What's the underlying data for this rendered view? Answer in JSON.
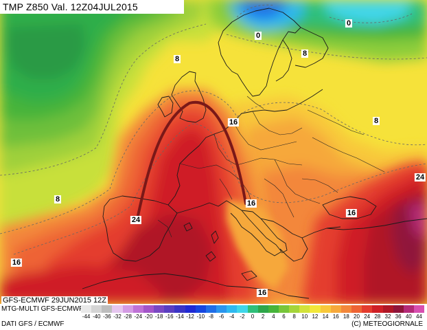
{
  "header": {
    "title": "TMP  Z850  Val.  12Z04JUL2015"
  },
  "model": {
    "run_label": "GFS-ECMWF  29JUN2015  12Z",
    "scale_title": "MTG-MULTI  GFS-ECMWF"
  },
  "footer": {
    "source": "DATI GFS / ECMWF",
    "credit": "(C) METEOGIORNALE"
  },
  "color_scale": {
    "labels": [
      "-44",
      "-40",
      "-36",
      "-32",
      "-28",
      "-24",
      "-20",
      "-18",
      "-16",
      "-14",
      "-12",
      "-10",
      "-8",
      "-6",
      "-4",
      "-2",
      "0",
      "2",
      "4",
      "6",
      "8",
      "10",
      "12",
      "14",
      "16",
      "18",
      "20",
      "24",
      "28",
      "32",
      "36",
      "40",
      "44"
    ],
    "colors": [
      "#e9e9e9",
      "#d4d4d4",
      "#bdbdbd",
      "#e6c6ef",
      "#d49be4",
      "#bf72d6",
      "#a355c9",
      "#7a48c3",
      "#5a3ec1",
      "#3a34c6",
      "#1f2ad4",
      "#1646e0",
      "#1f6ee8",
      "#2a96ee",
      "#2fb9f0",
      "#3fd6ea",
      "#2fbf7a",
      "#2ea64a",
      "#46b43a",
      "#77c63a",
      "#a4d53a",
      "#d2e23a",
      "#f2e83a",
      "#f8c83a",
      "#f6a83a",
      "#f3873a",
      "#ee6434",
      "#e43c2e",
      "#cf1f26",
      "#b01626",
      "#90143a",
      "#b42a78",
      "#d84fb0"
    ]
  },
  "isotherm_labels": [
    {
      "name": "isotherm-label-0-scandinavia",
      "text": "0"
    },
    {
      "name": "isotherm-label-0-russia",
      "text": "0"
    },
    {
      "name": "isotherm-label-8-northsea",
      "text": "8"
    },
    {
      "name": "isotherm-label-8-baltic",
      "text": "8"
    },
    {
      "name": "isotherm-label-8-russia",
      "text": "8"
    },
    {
      "name": "isotherm-label-8-atlantic",
      "text": "8"
    },
    {
      "name": "isotherm-label-16-germany",
      "text": "16"
    },
    {
      "name": "isotherm-label-16-italy",
      "text": "16"
    },
    {
      "name": "isotherm-label-16-blacksea",
      "text": "16"
    },
    {
      "name": "isotherm-label-16-portugal",
      "text": "16"
    },
    {
      "name": "isotherm-label-16-africa",
      "text": "16"
    },
    {
      "name": "isotherm-label-24-spain",
      "text": "24"
    },
    {
      "name": "isotherm-label-24-east",
      "text": "24"
    }
  ],
  "colors": {
    "cold_core": "#2a96ee",
    "mild": "#46b43a",
    "warm": "#f2e83a",
    "hot": "#e43c2e",
    "very_hot": "#90143a",
    "ridge_axis": "#7a1818"
  }
}
